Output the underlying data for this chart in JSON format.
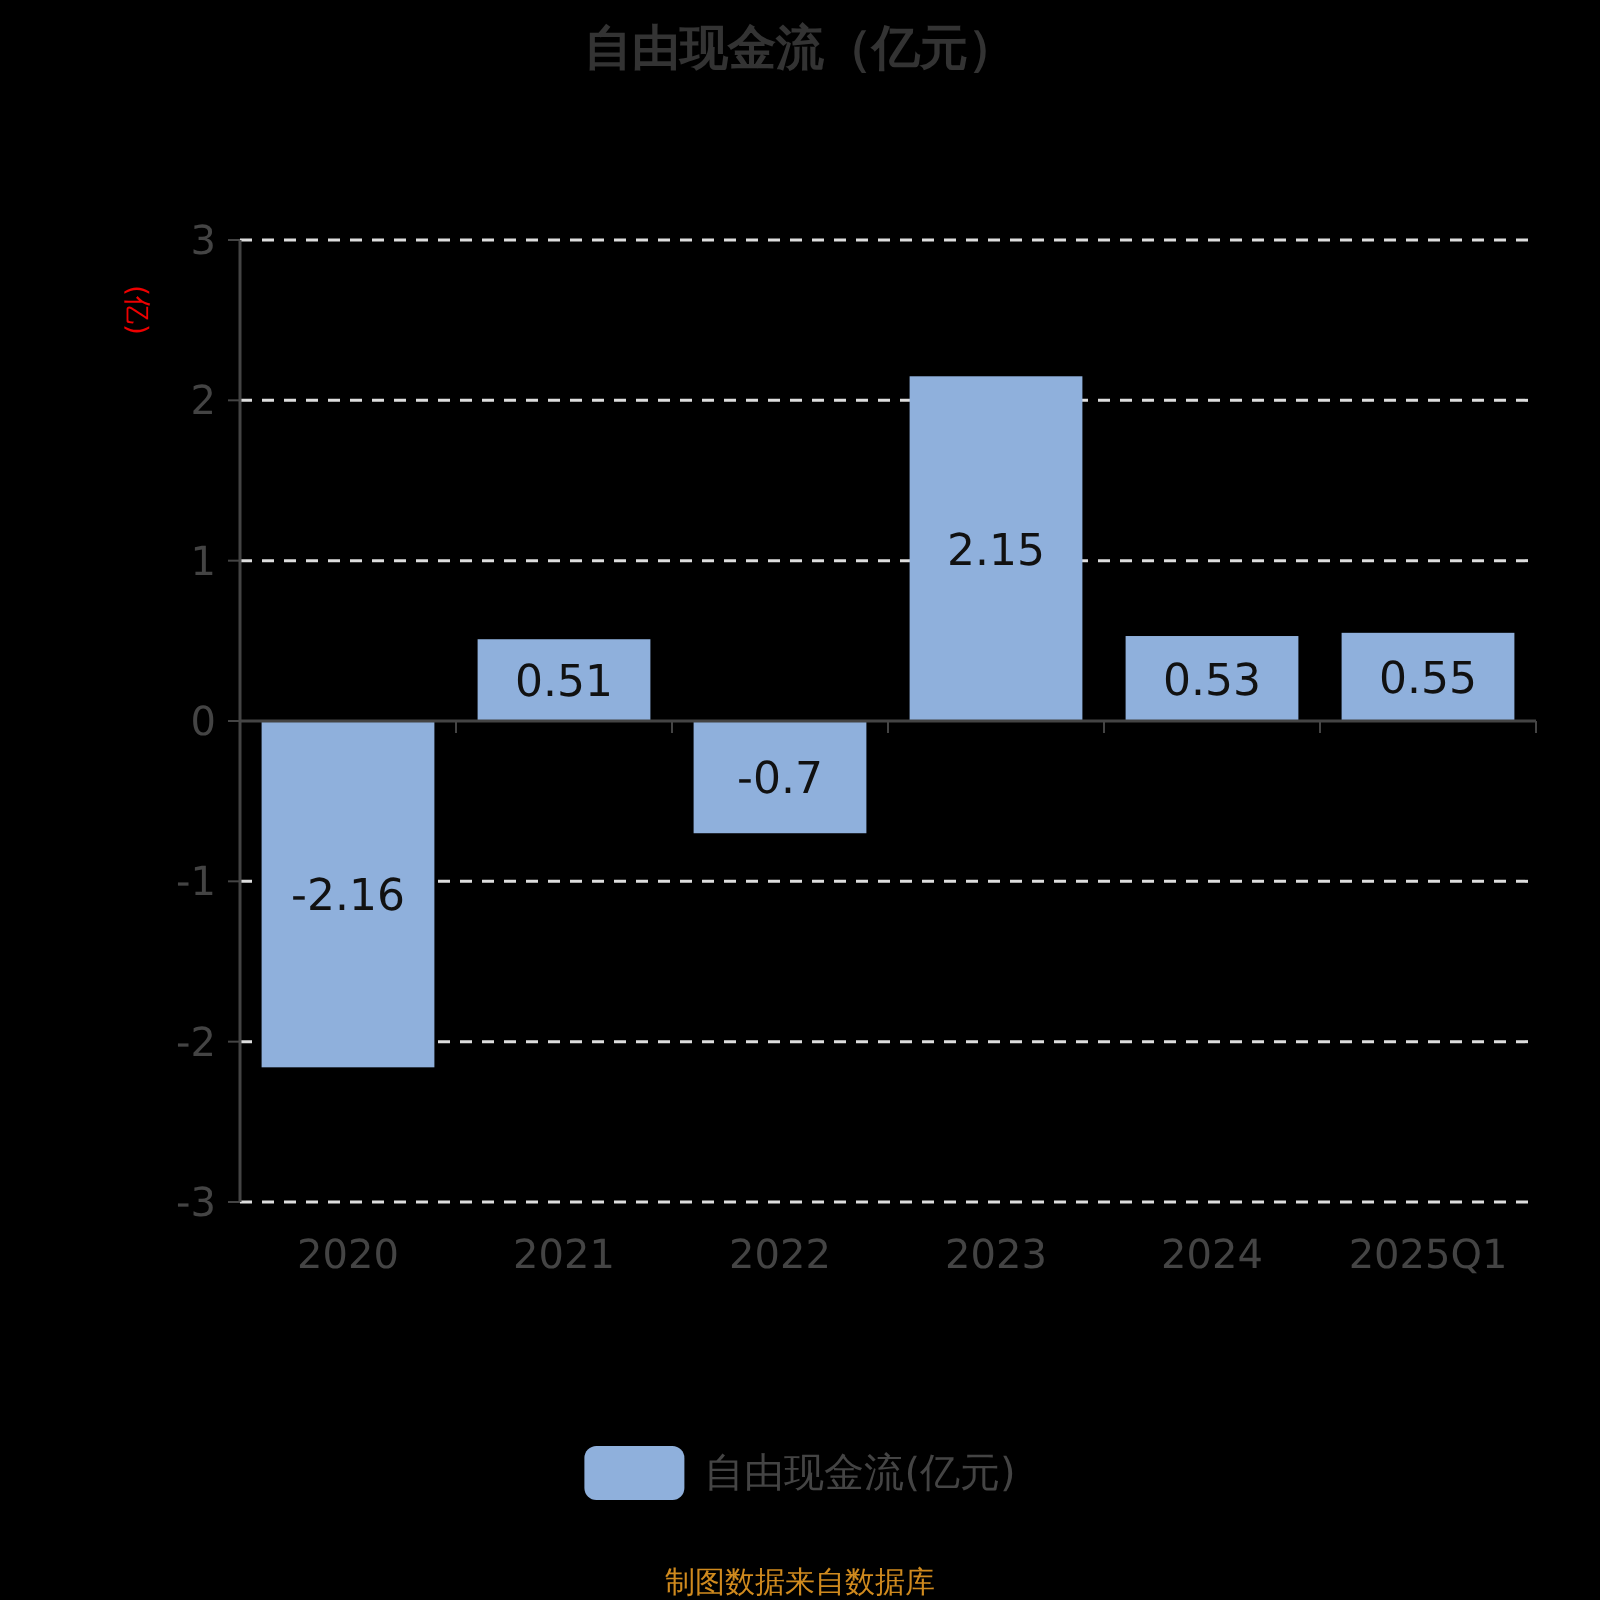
{
  "chart_data": {
    "type": "bar",
    "title": "自由现金流（亿元）",
    "ylabel": "(亿)",
    "categories": [
      "2020",
      "2021",
      "2022",
      "2023",
      "2024",
      "2025Q1"
    ],
    "series": [
      {
        "name": "自由现金流(亿元)",
        "color": "#8fb0dc",
        "values": [
          -2.16,
          0.51,
          -0.7,
          2.15,
          0.53,
          0.55
        ]
      }
    ],
    "ylim": [
      -3,
      3
    ],
    "yticks": [
      -3,
      -2,
      -1,
      0,
      1,
      2,
      3
    ],
    "grid": "y",
    "legend": "bottom",
    "data_labels": true,
    "annotations": [
      "制图数据来自数据库"
    ]
  }
}
